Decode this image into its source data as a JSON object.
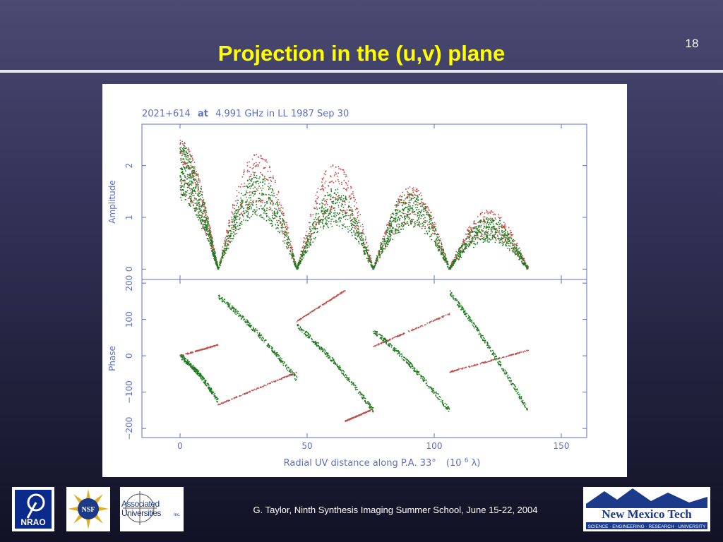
{
  "slide": {
    "page_number": "18",
    "title": "Projection in the (u,v) plane",
    "footer": "G. Taylor, Ninth Synthesis Imaging Summer School, June 15-22, 2004"
  },
  "logos": {
    "nrao": "NRAO",
    "nsf": "NSF",
    "aui_line1": "Associated",
    "aui_line2": "Universities",
    "aui_suffix": "Inc.",
    "nmt_name": "New Mexico Tech",
    "nmt_tagline": "SCIENCE · ENGINEERING · RESEARCH · UNIVERSITY"
  },
  "colors": {
    "model": "#c0504d",
    "data": "#1f7a1f",
    "axis": "#5c6fc0"
  },
  "chart_data": {
    "type": "scatter",
    "title_prefix": "2021+614",
    "title_bold": "at",
    "title_suffix": "4.991 GHz in LL  1987 Sep 30",
    "xlabel": "Radial UV distance along P.A. 33°",
    "xunit_prefix": "(10",
    "xunit_exp": "6",
    "xunit_suffix": " λ)",
    "xlim": [
      -15,
      160
    ],
    "xticks": [
      "0",
      "50",
      "100",
      "150"
    ],
    "xtick_values": [
      0,
      50,
      100,
      150
    ],
    "panels": [
      {
        "name": "amplitude",
        "ylabel": "Amplitude",
        "ylim": [
          -0.2,
          2.8
        ],
        "yticks": [
          "0",
          "1",
          "2"
        ],
        "ytick_values": [
          0,
          1,
          2
        ],
        "series": [
          {
            "role": "model",
            "lobes": [
              [
                0,
                15,
                2.45
              ],
              [
                15,
                46,
                2.2
              ],
              [
                46,
                76,
                2.0
              ],
              [
                76,
                106,
                1.55
              ],
              [
                106,
                137,
                1.1
              ]
            ]
          },
          {
            "role": "data",
            "lobes": [
              [
                0,
                15,
                2.4
              ],
              [
                15,
                46,
                1.85
              ],
              [
                46,
                76,
                1.55
              ],
              [
                76,
                106,
                1.5
              ],
              [
                106,
                137,
                1.0
              ]
            ]
          }
        ]
      },
      {
        "name": "phase",
        "ylabel": "Phase",
        "ylim": [
          -225,
          210
        ],
        "yticks": [
          "−200",
          "−100",
          "0",
          "100",
          "200"
        ],
        "ytick_values": [
          -200,
          -100,
          0,
          100,
          200
        ],
        "series": [
          {
            "role": "model",
            "segments": [
              [
                0,
                0,
                15,
                30
              ],
              [
                15,
                -135,
                46,
                -45
              ],
              [
                46,
                95,
                65,
                180
              ],
              [
                65,
                -180,
                75,
                -150
              ],
              [
                76,
                25,
                106,
                115
              ],
              [
                106,
                -45,
                137,
                15
              ]
            ]
          },
          {
            "role": "data",
            "segments": [
              [
                0,
                0,
                15,
                -125
              ],
              [
                15,
                165,
                46,
                -65
              ],
              [
                46,
                85,
                76,
                -150
              ],
              [
                76,
                70,
                106,
                -150
              ],
              [
                106,
                175,
                137,
                -150
              ]
            ]
          }
        ]
      }
    ]
  }
}
